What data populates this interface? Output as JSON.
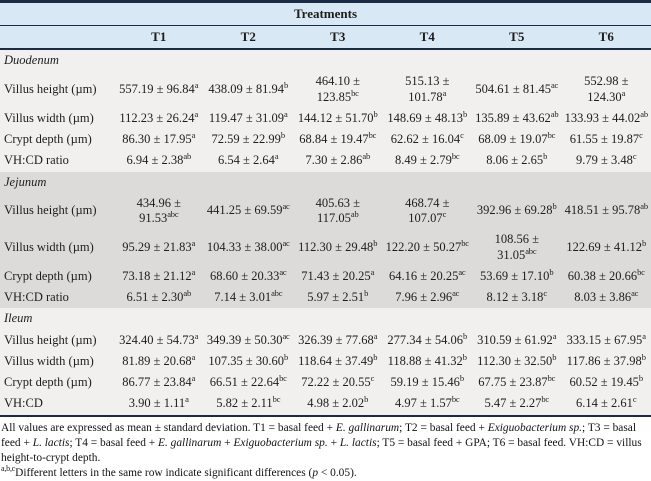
{
  "colors": {
    "header_bg": "#d9e8f5",
    "section_light_bg": "#f1f0ee",
    "section_dark_bg": "#dcdbd9",
    "rule": "#1c2b45"
  },
  "table": {
    "group_header": "Treatments",
    "columns": [
      "T1",
      "T2",
      "T3",
      "T4",
      "T5",
      "T6"
    ],
    "sections": [
      {
        "name": "Duodenum",
        "rows": [
          {
            "label": "Villus height (µm)",
            "cells": [
              {
                "v": "557.19 ± 96.84",
                "s": "a"
              },
              {
                "v": "438.09 ± 81.94",
                "s": "b"
              },
              {
                "v": "464.10 ± 123.85",
                "s": "bc"
              },
              {
                "v": "515.13 ± 101.78",
                "s": "a"
              },
              {
                "v": "504.61 ± 81.45",
                "s": "ac"
              },
              {
                "v": "552.98 ± 124.30",
                "s": "a"
              }
            ]
          },
          {
            "label": "Villus width (µm)",
            "cells": [
              {
                "v": "112.23 ± 26.24",
                "s": "a"
              },
              {
                "v": "119.47 ± 31.09",
                "s": "a"
              },
              {
                "v": "144.12 ± 51.70",
                "s": "b"
              },
              {
                "v": "148.69 ± 48.13",
                "s": "b"
              },
              {
                "v": "135.89 ± 43.62",
                "s": "ab"
              },
              {
                "v": "133.93 ± 44.02",
                "s": "ab"
              }
            ]
          },
          {
            "label": "Crypt depth (µm)",
            "cells": [
              {
                "v": "86.30 ± 17.95",
                "s": "a"
              },
              {
                "v": "72.59 ± 22.99",
                "s": "b"
              },
              {
                "v": "68.84 ± 19.47",
                "s": "bc"
              },
              {
                "v": "62.62 ± 16.04",
                "s": "c"
              },
              {
                "v": "68.09 ± 19.07",
                "s": "bc"
              },
              {
                "v": "61.55 ± 19.87",
                "s": "c"
              }
            ]
          },
          {
            "label": "VH:CD ratio",
            "cells": [
              {
                "v": "6.94 ± 2.38",
                "s": "ab"
              },
              {
                "v": "6.54 ± 2.64",
                "s": "a"
              },
              {
                "v": "7.30 ± 2.86",
                "s": "ab"
              },
              {
                "v": "8.49 ± 2.79",
                "s": "bc"
              },
              {
                "v": "8.06 ± 2.65",
                "s": "b"
              },
              {
                "v": "9.79 ± 3.48",
                "s": "c"
              }
            ]
          }
        ]
      },
      {
        "name": "Jejunum",
        "rows": [
          {
            "label": "Villus height (µm)",
            "cells": [
              {
                "v": "434.96 ± 91.53",
                "s": "abc"
              },
              {
                "v": "441.25 ± 69.59",
                "s": "ac"
              },
              {
                "v": "405.63 ± 117.05",
                "s": "ab"
              },
              {
                "v": "468.74 ± 107.07",
                "s": "c"
              },
              {
                "v": "392.96 ± 69.28",
                "s": "b"
              },
              {
                "v": "418.51 ± 95.78",
                "s": "ab"
              }
            ]
          },
          {
            "label": "Villus width (µm)",
            "cells": [
              {
                "v": "95.29 ± 21.83",
                "s": "a"
              },
              {
                "v": "104.33 ± 38.00",
                "s": "ac"
              },
              {
                "v": "112.30 ± 29.48",
                "s": "b"
              },
              {
                "v": "122.20 ± 50.27",
                "s": "bc"
              },
              {
                "v": "108.56 ± 31.05",
                "s": "abc"
              },
              {
                "v": "122.69 ± 41.12",
                "s": "b"
              }
            ]
          },
          {
            "label": "Crypt depth (µm)",
            "cells": [
              {
                "v": "73.18 ± 21.12",
                "s": "a"
              },
              {
                "v": "68.60 ± 20.33",
                "s": "ac"
              },
              {
                "v": "71.43 ± 20.25",
                "s": "a"
              },
              {
                "v": "64.16 ± 20.25",
                "s": "ac"
              },
              {
                "v": "53.69 ± 17.10",
                "s": "b"
              },
              {
                "v": "60.38 ± 20.66",
                "s": "bc"
              }
            ]
          },
          {
            "label": "VH:CD ratio",
            "cells": [
              {
                "v": "6.51 ± 2.30",
                "s": "ab"
              },
              {
                "v": "7.14 ± 3.01",
                "s": "abc"
              },
              {
                "v": "5.97 ± 2.51",
                "s": "b"
              },
              {
                "v": "7.96 ± 2.96",
                "s": "ac"
              },
              {
                "v": "8.12 ± 3.18",
                "s": "c"
              },
              {
                "v": "8.03 ± 3.86",
                "s": "ac"
              }
            ]
          }
        ]
      },
      {
        "name": "Ileum",
        "rows": [
          {
            "label": "Villus height (µm)",
            "cells": [
              {
                "v": "324.40 ± 54.73",
                "s": "a"
              },
              {
                "v": "349.39 ± 50.30",
                "s": "ac"
              },
              {
                "v": "326.39 ± 77.68",
                "s": "a"
              },
              {
                "v": "277.34 ± 54.06",
                "s": "b"
              },
              {
                "v": "310.59 ± 61.92",
                "s": "a"
              },
              {
                "v": "333.15 ± 67.95",
                "s": "a"
              }
            ]
          },
          {
            "label": "Villus width (µm)",
            "cells": [
              {
                "v": "81.89 ± 20.68",
                "s": "a"
              },
              {
                "v": "107.35 ± 30.60",
                "s": "b"
              },
              {
                "v": "118.64 ± 37.49",
                "s": "b"
              },
              {
                "v": "118.88 ± 41.32",
                "s": "b"
              },
              {
                "v": "112.30 ± 32.50",
                "s": "b"
              },
              {
                "v": "117.86 ± 37.98",
                "s": "b"
              }
            ]
          },
          {
            "label": "Crypt depth (µm)",
            "cells": [
              {
                "v": "86.77 ± 23.84",
                "s": "a"
              },
              {
                "v": "66.51 ± 22.64",
                "s": "bc"
              },
              {
                "v": "72.22 ± 20.55",
                "s": "c"
              },
              {
                "v": "59.19 ± 15.46",
                "s": "b"
              },
              {
                "v": "67.75 ± 23.87",
                "s": "bc"
              },
              {
                "v": "60.52 ± 19.45",
                "s": "b"
              }
            ]
          },
          {
            "label": "VH:CD",
            "cells": [
              {
                "v": "3.90 ± 1.11",
                "s": "a"
              },
              {
                "v": "5.82 ± 2.11",
                "s": "bc"
              },
              {
                "v": "4.98 ± 2.02",
                "s": "b"
              },
              {
                "v": "4.97 ± 1.57",
                "s": "bc"
              },
              {
                "v": "5.47 ± 2.27",
                "s": "bc"
              },
              {
                "v": "6.14 ± 2.61",
                "s": "c"
              }
            ]
          }
        ]
      }
    ]
  },
  "footnotes": {
    "line1_segments": [
      {
        "t": "All values are expressed as mean ± standard deviation. T1 = basal feed + ",
        "i": false
      },
      {
        "t": "E. gallinarum",
        "i": true
      },
      {
        "t": "; T2 = basal feed + ",
        "i": false
      },
      {
        "t": "Exiguobacterium sp.",
        "i": true
      },
      {
        "t": "; T3 = basal feed + ",
        "i": false
      },
      {
        "t": "L. lactis",
        "i": true
      },
      {
        "t": "; T4 = basal feed + ",
        "i": false
      },
      {
        "t": "E. gallinarum",
        "i": true
      },
      {
        "t": " + ",
        "i": false
      },
      {
        "t": "Exiguobacterium sp.",
        "i": true
      },
      {
        "t": " + ",
        "i": false
      },
      {
        "t": "L. lactis",
        "i": true
      },
      {
        "t": "; T5 = basal feed + GPA; T6 = basal feed. VH:CD = villus height-to-crypt depth.",
        "i": false
      }
    ],
    "line2_sup": "a,b,c",
    "line2_segments": [
      {
        "t": "Different letters in the same row indicate significant differences (",
        "i": false
      },
      {
        "t": "p",
        "i": true
      },
      {
        "t": " < 0.05).",
        "i": false
      }
    ]
  }
}
